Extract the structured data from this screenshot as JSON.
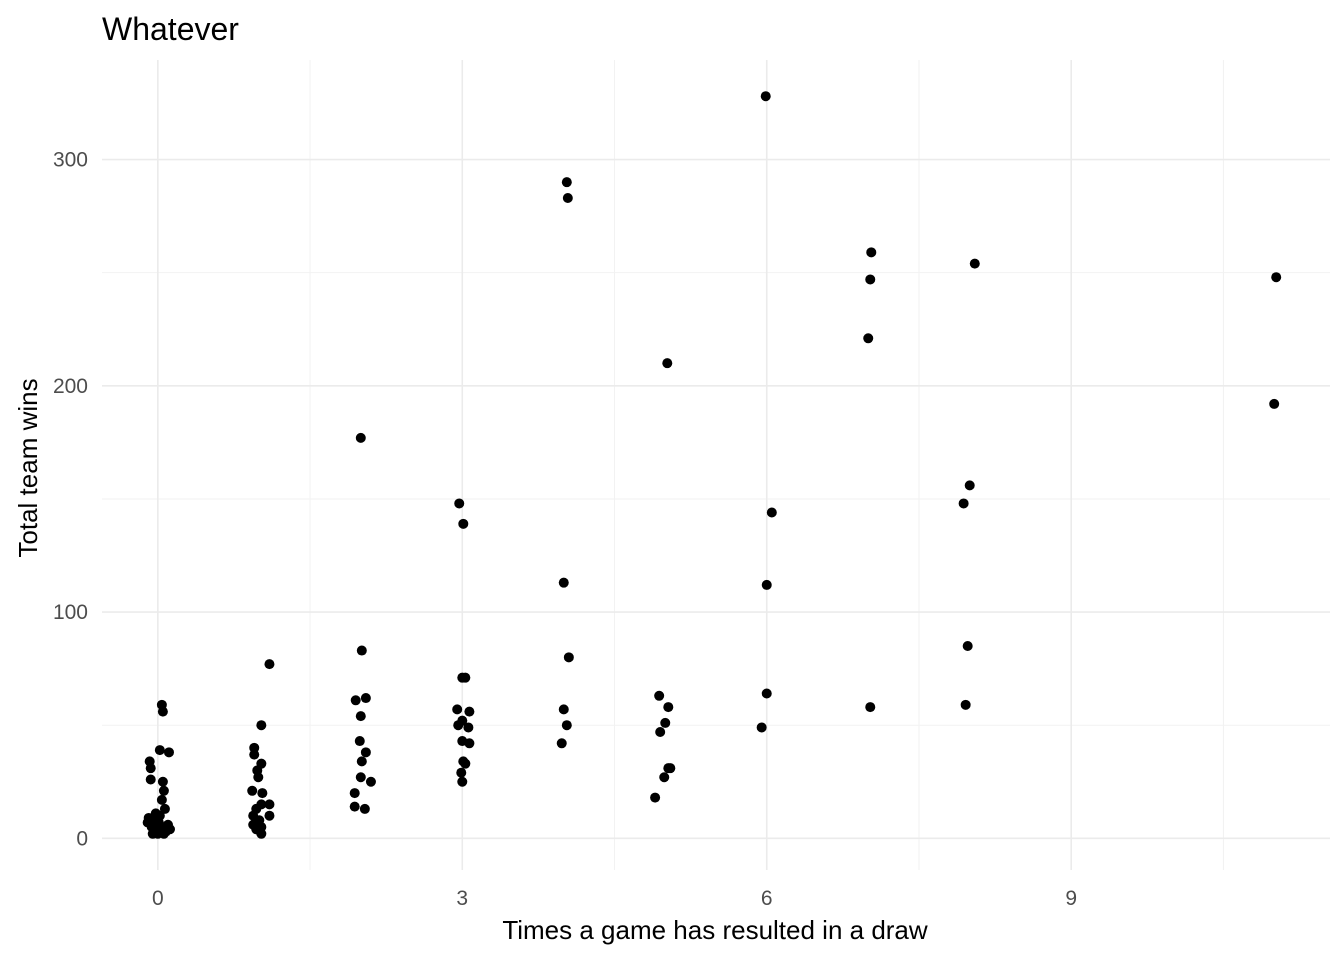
{
  "chart_data": {
    "type": "scatter",
    "title": "Whatever",
    "xlabel": "Times a game has resulted in a draw",
    "ylabel": "Total team wins",
    "xlim": [
      -0.55,
      11.55
    ],
    "ylim": [
      -14,
      344
    ],
    "x_ticks": [
      0,
      3,
      6,
      9
    ],
    "x_minor_ticks": [
      1.5,
      4.5,
      7.5,
      10.5
    ],
    "y_ticks": [
      0,
      100,
      200,
      300
    ],
    "y_minor_ticks": [
      50,
      150,
      250
    ],
    "grid": true,
    "legend": "none",
    "point_color": "#000000",
    "points": [
      {
        "x": 0.04,
        "y": 59
      },
      {
        "x": 0.05,
        "y": 56
      },
      {
        "x": 0.02,
        "y": 39
      },
      {
        "x": 0.11,
        "y": 38
      },
      {
        "x": -0.08,
        "y": 34
      },
      {
        "x": -0.07,
        "y": 31
      },
      {
        "x": -0.07,
        "y": 26
      },
      {
        "x": 0.05,
        "y": 25
      },
      {
        "x": 0.06,
        "y": 21
      },
      {
        "x": 0.04,
        "y": 17
      },
      {
        "x": 0.07,
        "y": 13
      },
      {
        "x": -0.09,
        "y": 9
      },
      {
        "x": -0.02,
        "y": 11
      },
      {
        "x": 0.02,
        "y": 10
      },
      {
        "x": -0.04,
        "y": 8
      },
      {
        "x": 0.01,
        "y": 7
      },
      {
        "x": 0.1,
        "y": 6
      },
      {
        "x": -0.06,
        "y": 5
      },
      {
        "x": 0.03,
        "y": 4
      },
      {
        "x": -0.02,
        "y": 3
      },
      {
        "x": 0.08,
        "y": 3
      },
      {
        "x": -0.05,
        "y": 2
      },
      {
        "x": 0.0,
        "y": 2
      },
      {
        "x": 0.06,
        "y": 2
      },
      {
        "x": 0.12,
        "y": 4
      },
      {
        "x": -0.1,
        "y": 7
      },
      {
        "x": 1.1,
        "y": 77
      },
      {
        "x": 1.02,
        "y": 50
      },
      {
        "x": 0.95,
        "y": 40
      },
      {
        "x": 0.95,
        "y": 37
      },
      {
        "x": 1.02,
        "y": 33
      },
      {
        "x": 0.98,
        "y": 30
      },
      {
        "x": 0.99,
        "y": 27
      },
      {
        "x": 0.93,
        "y": 21
      },
      {
        "x": 1.03,
        "y": 20
      },
      {
        "x": 1.1,
        "y": 15
      },
      {
        "x": 1.02,
        "y": 15
      },
      {
        "x": 0.97,
        "y": 13
      },
      {
        "x": 1.1,
        "y": 10
      },
      {
        "x": 0.94,
        "y": 10
      },
      {
        "x": 1.0,
        "y": 8
      },
      {
        "x": 0.94,
        "y": 6
      },
      {
        "x": 1.02,
        "y": 5
      },
      {
        "x": 0.97,
        "y": 4
      },
      {
        "x": 1.01,
        "y": 3
      },
      {
        "x": 1.02,
        "y": 2
      },
      {
        "x": 2.0,
        "y": 177
      },
      {
        "x": 2.01,
        "y": 83
      },
      {
        "x": 2.05,
        "y": 62
      },
      {
        "x": 1.95,
        "y": 61
      },
      {
        "x": 2.0,
        "y": 54
      },
      {
        "x": 1.99,
        "y": 43
      },
      {
        "x": 2.05,
        "y": 38
      },
      {
        "x": 2.01,
        "y": 34
      },
      {
        "x": 2.0,
        "y": 27
      },
      {
        "x": 2.1,
        "y": 25
      },
      {
        "x": 1.94,
        "y": 20
      },
      {
        "x": 1.94,
        "y": 14
      },
      {
        "x": 2.04,
        "y": 13
      },
      {
        "x": 2.97,
        "y": 148
      },
      {
        "x": 3.01,
        "y": 139
      },
      {
        "x": 3.0,
        "y": 71
      },
      {
        "x": 3.03,
        "y": 71
      },
      {
        "x": 2.95,
        "y": 57
      },
      {
        "x": 3.07,
        "y": 56
      },
      {
        "x": 3.0,
        "y": 52
      },
      {
        "x": 2.96,
        "y": 50
      },
      {
        "x": 3.06,
        "y": 49
      },
      {
        "x": 3.0,
        "y": 43
      },
      {
        "x": 3.07,
        "y": 42
      },
      {
        "x": 3.01,
        "y": 34
      },
      {
        "x": 3.03,
        "y": 33
      },
      {
        "x": 2.99,
        "y": 29
      },
      {
        "x": 3.0,
        "y": 25
      },
      {
        "x": 4.03,
        "y": 290
      },
      {
        "x": 4.04,
        "y": 283
      },
      {
        "x": 4.0,
        "y": 113
      },
      {
        "x": 4.05,
        "y": 80
      },
      {
        "x": 4.0,
        "y": 57
      },
      {
        "x": 4.03,
        "y": 50
      },
      {
        "x": 3.98,
        "y": 42
      },
      {
        "x": 5.02,
        "y": 210
      },
      {
        "x": 4.94,
        "y": 63
      },
      {
        "x": 5.03,
        "y": 58
      },
      {
        "x": 5.0,
        "y": 51
      },
      {
        "x": 4.95,
        "y": 47
      },
      {
        "x": 5.03,
        "y": 31
      },
      {
        "x": 5.05,
        "y": 31
      },
      {
        "x": 4.99,
        "y": 27
      },
      {
        "x": 4.9,
        "y": 18
      },
      {
        "x": 5.99,
        "y": 328
      },
      {
        "x": 6.05,
        "y": 144
      },
      {
        "x": 6.0,
        "y": 112
      },
      {
        "x": 6.0,
        "y": 64
      },
      {
        "x": 5.95,
        "y": 49
      },
      {
        "x": 7.03,
        "y": 259
      },
      {
        "x": 7.02,
        "y": 247
      },
      {
        "x": 7.0,
        "y": 221
      },
      {
        "x": 7.02,
        "y": 58
      },
      {
        "x": 8.05,
        "y": 254
      },
      {
        "x": 8.0,
        "y": 156
      },
      {
        "x": 7.94,
        "y": 148
      },
      {
        "x": 7.98,
        "y": 85
      },
      {
        "x": 7.96,
        "y": 59
      },
      {
        "x": 11.02,
        "y": 248
      },
      {
        "x": 11.0,
        "y": 192
      }
    ]
  }
}
